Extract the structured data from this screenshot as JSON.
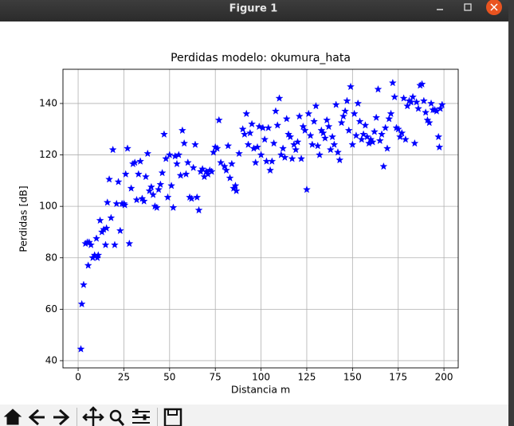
{
  "window": {
    "title": "Figure 1"
  },
  "chart_data": {
    "type": "scatter",
    "title": "Perdidas modelo: okumura_hata",
    "x_label": "Distancia m",
    "y_label": "Perdidas [dB]",
    "color": "#0000ff",
    "marker": "star",
    "grid": true,
    "xlim": [
      -8.3,
      207.8
    ],
    "ylim": [
      37.2,
      153.3
    ],
    "xticks": [
      0,
      25,
      50,
      75,
      100,
      125,
      150,
      175,
      200
    ],
    "yticks": [
      40,
      60,
      80,
      100,
      120,
      140
    ],
    "x": [
      1.5,
      2,
      3,
      4,
      5,
      5.5,
      6,
      7,
      8,
      9,
      10,
      10.5,
      11,
      12,
      13,
      14,
      15,
      15.5,
      16,
      17,
      18,
      19,
      20,
      21,
      22,
      23,
      24,
      25,
      25.5,
      26,
      27,
      28,
      29,
      30,
      31,
      32,
      33,
      34,
      35,
      36,
      37,
      38,
      39,
      40,
      41,
      42,
      43,
      44,
      45,
      46,
      47,
      48,
      49,
      50,
      51,
      52,
      53,
      54,
      55,
      56,
      57,
      58,
      59,
      60,
      61,
      62,
      63,
      64,
      65,
      66,
      67,
      68,
      69,
      70,
      71,
      72,
      73,
      74,
      75,
      76,
      77,
      78,
      80,
      81,
      82,
      83,
      84,
      85,
      86,
      86.5,
      88,
      90,
      91,
      92,
      93,
      94,
      95,
      96,
      97,
      98,
      99,
      100,
      101,
      102,
      103,
      104,
      105,
      106,
      107,
      108,
      109,
      110,
      111,
      112,
      113,
      114,
      115,
      116,
      117,
      118,
      119,
      120,
      121,
      122,
      123,
      124,
      125,
      126,
      127,
      128,
      129,
      130,
      131,
      132,
      133,
      134,
      135,
      136,
      137,
      138,
      139,
      140,
      141,
      142,
      143,
      144,
      145,
      146,
      147,
      148,
      149,
      150,
      151,
      152,
      153,
      154,
      155,
      156,
      157,
      158,
      159,
      160,
      161,
      162,
      163,
      164,
      165,
      166,
      167,
      168,
      169,
      170,
      171,
      172,
      173,
      174,
      175,
      176,
      177,
      178,
      179,
      180,
      181,
      182,
      183,
      184,
      185,
      186,
      187,
      188,
      189,
      190,
      191,
      192,
      193,
      194,
      195,
      196,
      197,
      197.5,
      198,
      199
    ],
    "y": [
      44.5,
      62,
      69.5,
      85.5,
      86,
      77,
      86,
      85,
      80,
      81,
      87.5,
      80,
      81,
      94.5,
      90,
      91,
      85,
      91.5,
      101.5,
      110.5,
      95.5,
      122,
      85,
      101,
      109.5,
      90.5,
      101,
      101,
      100.5,
      112.5,
      122.5,
      85.5,
      107,
      116.5,
      117,
      102.5,
      112.5,
      117.5,
      103,
      102,
      111.5,
      120.5,
      106,
      107.5,
      104.5,
      100,
      99.5,
      106.5,
      108.5,
      113,
      128,
      118.5,
      103.5,
      120,
      108,
      99.5,
      119.5,
      116.5,
      120,
      112,
      129.5,
      124.5,
      112.5,
      117,
      103.5,
      103,
      115,
      124,
      103.5,
      98.5,
      113.5,
      114.5,
      111.5,
      113.5,
      112.5,
      114,
      113.5,
      121,
      123,
      122.5,
      133.5,
      117,
      115.5,
      114,
      123.5,
      111,
      116.5,
      107,
      108,
      106,
      120.5,
      130,
      128,
      136,
      124,
      128.5,
      132,
      122.5,
      117,
      123,
      131,
      120,
      130.5,
      126,
      117.5,
      130.5,
      114,
      117.5,
      124.5,
      137,
      131.5,
      142,
      120,
      122.5,
      119,
      134,
      128,
      127,
      118.5,
      124,
      122,
      125,
      135,
      118.5,
      131,
      129.5,
      106.5,
      136,
      127.5,
      124,
      133,
      139,
      123.5,
      120,
      129.5,
      128.5,
      126.5,
      133.5,
      131,
      122,
      127,
      124,
      139.5,
      121,
      118,
      132.5,
      135,
      137,
      141,
      129.5,
      146.5,
      124,
      136,
      127.5,
      140,
      133,
      126,
      128,
      131.5,
      127,
      124.5,
      126,
      125,
      129,
      134.5,
      145.5,
      125.5,
      128,
      115.5,
      130.5,
      122.5,
      134,
      136,
      148,
      142.5,
      130.5,
      130,
      127,
      128.5,
      142,
      126,
      139,
      141,
      140.5,
      142.5,
      124.5,
      140.5,
      138,
      147,
      147.5,
      141,
      136.5,
      133.5,
      132.5,
      140,
      137.5,
      137.5,
      137,
      127,
      123,
      138,
      139.5
    ]
  }
}
